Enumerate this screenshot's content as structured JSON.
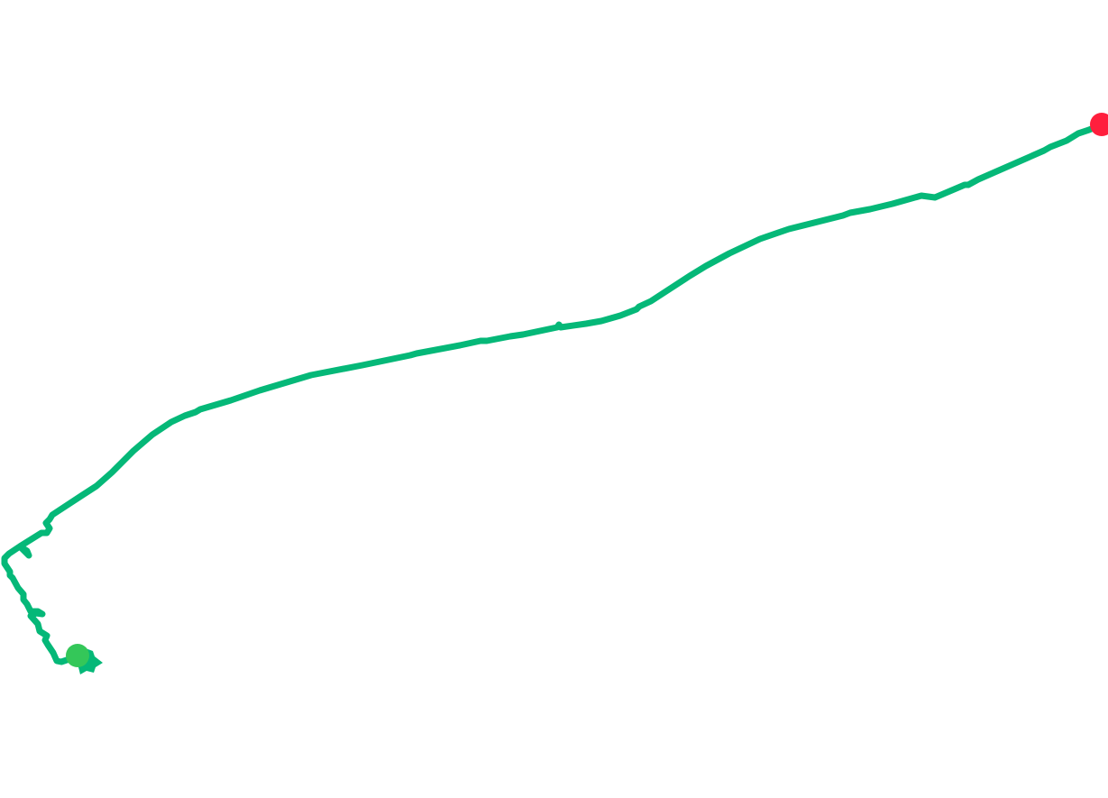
{
  "map": {
    "background_color": "#ffffff",
    "route": {
      "color": "#05b878"
    },
    "start_marker": {
      "type": "start",
      "color": "#34c759"
    },
    "end_marker": {
      "type": "end",
      "color": "#ff1f3d"
    }
  }
}
